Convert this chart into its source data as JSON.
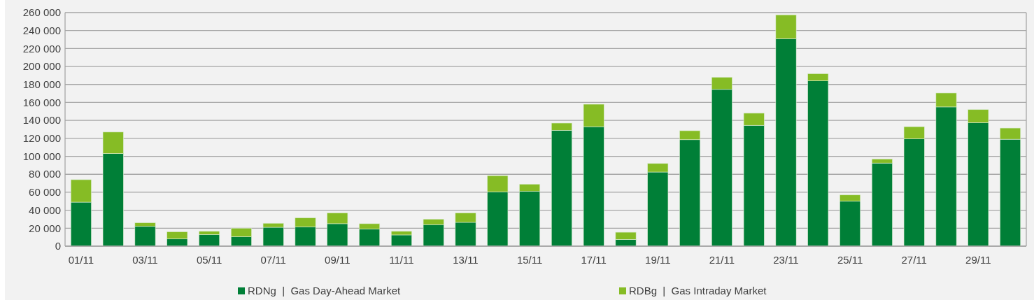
{
  "chart_data": {
    "type": "bar",
    "stacked": true,
    "categories": [
      "01/11",
      null,
      "03/11",
      null,
      "05/11",
      null,
      "07/11",
      null,
      "09/11",
      null,
      "11/11",
      null,
      "13/11",
      null,
      "15/11",
      null,
      "17/11",
      null,
      "19/11",
      null,
      "21/11",
      null,
      "23/11",
      null,
      "25/11",
      null,
      "27/11",
      null,
      "29/11",
      null
    ],
    "series": [
      {
        "name": "RDNg  |  Gas Day-Ahead Market",
        "color": "#007f37",
        "values": [
          49000,
          103000,
          22000,
          8000,
          13000,
          10500,
          21000,
          21500,
          25000,
          19000,
          12500,
          24000,
          26500,
          60500,
          61000,
          129000,
          133000,
          7500,
          82500,
          118500,
          174500,
          134500,
          231000,
          184000,
          50000,
          92500,
          119500,
          155000,
          137500,
          119000
        ]
      },
      {
        "name": "RDBg  |  Gas Intraday Market",
        "color": "#86bc25",
        "values": [
          25000,
          24000,
          4000,
          8000,
          3500,
          9500,
          4500,
          10000,
          12000,
          6000,
          4000,
          6000,
          10500,
          18000,
          8000,
          8000,
          25000,
          8000,
          9500,
          10000,
          13500,
          13500,
          26500,
          8000,
          7000,
          4500,
          13500,
          15500,
          14500,
          12500
        ]
      }
    ],
    "ylim": [
      0,
      260000
    ],
    "yticks": [
      {
        "value": 0,
        "label": "0"
      },
      {
        "value": 20000,
        "label": "20 000"
      },
      {
        "value": 40000,
        "label": "40 000"
      },
      {
        "value": 60000,
        "label": "60 000"
      },
      {
        "value": 80000,
        "label": "80 000"
      },
      {
        "value": 100000,
        "label": "100 000"
      },
      {
        "value": 120000,
        "label": "120 000"
      },
      {
        "value": 140000,
        "label": "140 000"
      },
      {
        "value": 160000,
        "label": "160 000"
      },
      {
        "value": 180000,
        "label": "180 000"
      },
      {
        "value": 200000,
        "label": "200 000"
      },
      {
        "value": 220000,
        "label": "220 000"
      },
      {
        "value": 240000,
        "label": "240 000"
      },
      {
        "value": 260000,
        "label": "260 000"
      }
    ],
    "grid": "y",
    "legend": "bottom"
  }
}
